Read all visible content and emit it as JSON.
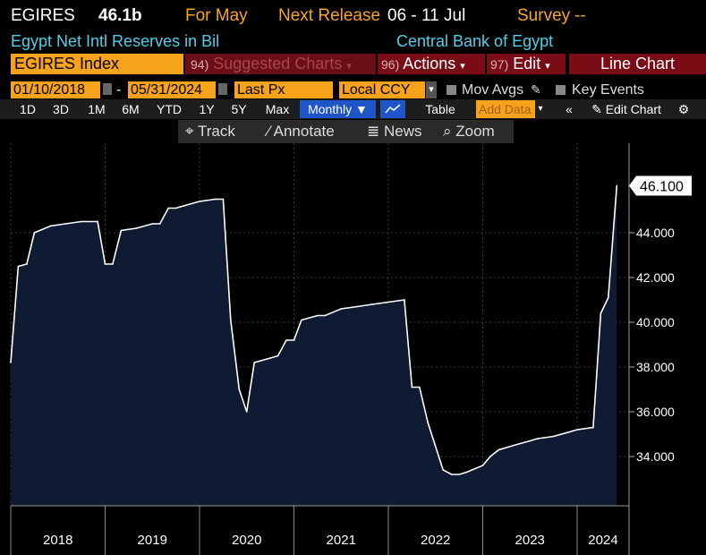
{
  "header": {
    "ticker": "EGIRES",
    "last_value": "46.1b",
    "for_label": "For May",
    "next_release_label": "Next Release",
    "next_release_dates": "06 - 11 Jul",
    "survey_label": "Survey",
    "survey_value": "--",
    "description": "Egypt Net Intl Reserves in Bil",
    "source": "Central Bank of Egypt"
  },
  "function_bar": {
    "security": "EGIRES Index",
    "suggested_num": "94)",
    "suggested_label": "Suggested Charts",
    "actions_num": "96)",
    "actions_label": "Actions",
    "edit_num": "97)",
    "edit_label": "Edit",
    "chart_type": "Line Chart"
  },
  "settings": {
    "start_date": "01/10/2018",
    "end_date": "05/31/2024",
    "field": "Last Px",
    "currency": "Local CCY",
    "mov_avgs": "Mov Avgs",
    "key_events": "Key Events"
  },
  "periods": [
    "1D",
    "3D",
    "1M",
    "6M",
    "YTD",
    "1Y",
    "5Y",
    "Max"
  ],
  "period_bar": {
    "frequency": "Monthly",
    "table": "Table",
    "add_data": "Add Data",
    "edit_chart": "Edit Chart"
  },
  "tools": {
    "track": "Track",
    "annotate": "Annotate",
    "news": "News",
    "zoom": "Zoom"
  },
  "chart_data": {
    "type": "area",
    "title": "",
    "xlabel": "",
    "ylabel": "",
    "ylim": [
      31.8,
      48.0
    ],
    "y_ticks": [
      "34.000",
      "36.000",
      "38.000",
      "40.000",
      "42.000",
      "44.000"
    ],
    "x_tick_labels": [
      "2018",
      "2019",
      "2020",
      "2021",
      "2022",
      "2023",
      "2024"
    ],
    "last_value_label": "46.100",
    "grid": true,
    "colors": {
      "line": "#ffffff",
      "fill": "#0f1a33",
      "grid": "#3a3a3a",
      "last_label_bg": "#ffffff"
    },
    "series": [
      {
        "values": [
          [
            2018.0,
            38.2
          ],
          [
            2018.08,
            42.5
          ],
          [
            2018.17,
            42.6
          ],
          [
            2018.25,
            44.0
          ],
          [
            2018.42,
            44.3
          ],
          [
            2018.58,
            44.4
          ],
          [
            2018.75,
            44.5
          ],
          [
            2018.92,
            44.5
          ],
          [
            2019.0,
            42.6
          ],
          [
            2019.08,
            42.6
          ],
          [
            2019.17,
            44.1
          ],
          [
            2019.33,
            44.2
          ],
          [
            2019.5,
            44.4
          ],
          [
            2019.58,
            44.4
          ],
          [
            2019.67,
            45.1
          ],
          [
            2019.75,
            45.1
          ],
          [
            2019.83,
            45.2
          ],
          [
            2020.0,
            45.4
          ],
          [
            2020.17,
            45.5
          ],
          [
            2020.25,
            45.5
          ],
          [
            2020.33,
            40.1
          ],
          [
            2020.42,
            37.0
          ],
          [
            2020.5,
            36.0
          ],
          [
            2020.58,
            38.2
          ],
          [
            2020.75,
            38.4
          ],
          [
            2020.83,
            38.5
          ],
          [
            2020.92,
            39.2
          ],
          [
            2021.0,
            39.2
          ],
          [
            2021.08,
            40.1
          ],
          [
            2021.25,
            40.3
          ],
          [
            2021.33,
            40.3
          ],
          [
            2021.5,
            40.6
          ],
          [
            2021.67,
            40.7
          ],
          [
            2021.83,
            40.8
          ],
          [
            2022.0,
            40.9
          ],
          [
            2022.17,
            41.0
          ],
          [
            2022.25,
            37.1
          ],
          [
            2022.33,
            37.1
          ],
          [
            2022.42,
            35.5
          ],
          [
            2022.58,
            33.4
          ],
          [
            2022.67,
            33.2
          ],
          [
            2022.75,
            33.2
          ],
          [
            2022.83,
            33.3
          ],
          [
            2023.0,
            33.6
          ],
          [
            2023.08,
            34.0
          ],
          [
            2023.17,
            34.3
          ],
          [
            2023.33,
            34.5
          ],
          [
            2023.5,
            34.7
          ],
          [
            2023.58,
            34.8
          ],
          [
            2023.75,
            34.9
          ],
          [
            2023.92,
            35.1
          ],
          [
            2024.0,
            35.2
          ],
          [
            2024.17,
            35.3
          ],
          [
            2024.25,
            40.4
          ],
          [
            2024.33,
            41.1
          ],
          [
            2024.42,
            46.1
          ]
        ]
      }
    ]
  }
}
